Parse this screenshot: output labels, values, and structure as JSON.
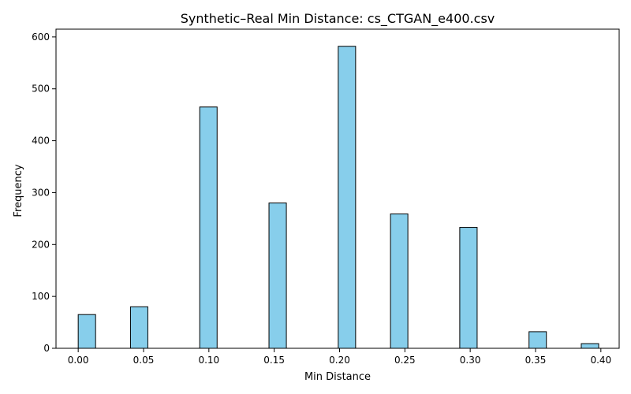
{
  "chart_data": {
    "type": "bar",
    "title": "Synthetic–Real Min Distance: cs_CTGAN_e400.csv",
    "xlabel": "Min Distance",
    "ylabel": "Frequency",
    "xlim": [
      -0.017,
      0.414
    ],
    "ylim": [
      0,
      615
    ],
    "x_ticks": [
      0.0,
      0.05,
      0.1,
      0.15,
      0.2,
      0.25,
      0.3,
      0.35,
      0.4
    ],
    "x_tick_labels": [
      "0.00",
      "0.05",
      "0.10",
      "0.15",
      "0.20",
      "0.25",
      "0.30",
      "0.35",
      "0.40"
    ],
    "y_ticks": [
      0,
      100,
      200,
      300,
      400,
      500,
      600
    ],
    "y_tick_labels": [
      "0",
      "100",
      "200",
      "300",
      "400",
      "500",
      "600"
    ],
    "bin_width": 0.0133,
    "bins": [
      {
        "x": 0.0,
        "count": 65
      },
      {
        "x": 0.04,
        "count": 80
      },
      {
        "x": 0.093,
        "count": 465
      },
      {
        "x": 0.146,
        "count": 280
      },
      {
        "x": 0.199,
        "count": 582
      },
      {
        "x": 0.239,
        "count": 259
      },
      {
        "x": 0.292,
        "count": 233
      },
      {
        "x": 0.345,
        "count": 32
      },
      {
        "x": 0.385,
        "count": 9
      }
    ],
    "bar_color": "#87ceeb",
    "edge_color": "#000000",
    "grid": false,
    "legend": "none"
  }
}
